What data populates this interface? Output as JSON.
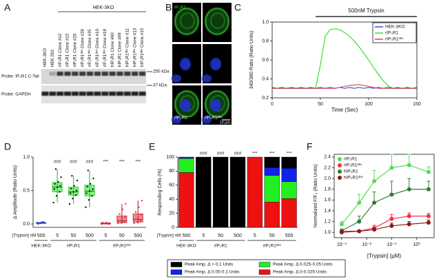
{
  "panel_labels": [
    "A",
    "B",
    "C",
    "D",
    "E",
    "F"
  ],
  "blot": {
    "group_label": "HEK-3KO",
    "lanes": [
      "HEK-3KO",
      "HEK 293",
      "rIP₃R1 Clone #12",
      "rIP₃R1 Clone #13",
      "rIP₃R1 Clone #20",
      "rIP₃R1ᵈᵉᵛ Clone #28",
      "rIP₃R1ᵈᵉᵛ Clone #35",
      "rIP₃R1ᵈᵉᵛ Clone #10",
      "rIP₃R1ᵈᵉᵛ Clone #18",
      "hIP₃R1 Clone #60",
      "hIP₃R1 Clone #69",
      "hIP₃R1ᵈᵉᵛ Clone #11",
      "hIP₃R1ᵈᵉᵛ Clone #13",
      "hIP₃R1ᵈᵉᵛ Clone #15"
    ],
    "probes": [
      "Probe: IP₃R1 C-Tail",
      "Probe: GAPDH"
    ],
    "markers": [
      "250 kDa",
      "37 kDa"
    ]
  },
  "micrographs": {
    "channel_label": "IP₃R1",
    "column_labels": [
      "rIP₃R1",
      "rIP₃R1ᵈᵉᵛ"
    ],
    "scale_bar": "10 μm"
  },
  "chart_data": [
    {
      "type": "line",
      "title": "500nM Trypsin",
      "annotation_span": [
        45,
        150
      ],
      "xlabel": "Time (Sec)",
      "ylabel": "340/380 Ratio (Ratio Units)",
      "x": [
        0,
        5,
        10,
        15,
        20,
        25,
        30,
        35,
        40,
        45,
        50,
        55,
        60,
        65,
        70,
        75,
        80,
        85,
        90,
        95,
        100,
        105,
        110,
        115,
        120,
        125,
        130,
        135,
        140,
        145,
        150
      ],
      "xlim": [
        0,
        150
      ],
      "xticks": [
        0,
        50,
        100,
        150
      ],
      "ylim": [
        0.2,
        1.0
      ],
      "yticks": [
        0.2,
        0.4,
        0.6,
        0.8,
        {
          "value": 1.0,
          "label": "1.0"
        }
      ],
      "legend": "upper right",
      "series": [
        {
          "name": "HEK-3KO",
          "color": "#2040e0",
          "values": [
            0.31,
            0.3,
            0.31,
            0.3,
            0.31,
            0.3,
            0.31,
            0.3,
            0.31,
            0.3,
            0.31,
            0.3,
            0.31,
            0.3,
            0.31,
            0.3,
            0.31,
            0.3,
            0.31,
            0.3,
            0.31,
            0.3,
            0.31,
            0.3,
            0.31,
            0.3,
            0.31,
            0.3,
            0.31,
            0.3,
            0.31
          ]
        },
        {
          "name": "rIP₃R1",
          "color": "#22dd22",
          "values": [
            0.3,
            0.3,
            0.3,
            0.3,
            0.3,
            0.3,
            0.3,
            0.3,
            0.3,
            0.3,
            0.55,
            0.85,
            0.92,
            0.93,
            0.92,
            0.89,
            0.85,
            0.8,
            0.74,
            0.67,
            0.6,
            0.52,
            0.45,
            0.38,
            0.33,
            0.3,
            0.3,
            0.3,
            0.3,
            0.3,
            0.3
          ]
        },
        {
          "name": "rIP₃R1ᵈᵉᵛ",
          "color": "#e03040",
          "values": [
            0.3,
            0.3,
            0.3,
            0.3,
            0.3,
            0.3,
            0.3,
            0.3,
            0.3,
            0.3,
            0.3,
            0.3,
            0.3,
            0.3,
            0.31,
            0.32,
            0.33,
            0.335,
            0.34,
            0.33,
            0.32,
            0.31,
            0.3,
            0.3,
            0.3,
            0.3,
            0.3,
            0.3,
            0.3,
            0.3,
            0.3
          ]
        }
      ]
    },
    {
      "type": "box",
      "ylabel": "Δ Amplitude (Ratio Units)",
      "dose_label": "[Trypsin] nM",
      "ylim": [
        -0.05,
        1.0
      ],
      "yticks": [
        {
          "value": 0,
          "label": "0.0"
        },
        0.5,
        {
          "value": 1,
          "label": "1.0"
        }
      ],
      "groups": [
        {
          "name": "HEK-3KO",
          "color": "#2040e0",
          "doses": [
            "500"
          ],
          "boxes": [
            {
              "q1": 0.01,
              "median": 0.015,
              "q3": 0.02,
              "low": 0,
              "high": 0.03,
              "points": [
                0.02,
                0.01,
                0.03,
                0.0,
                0.02,
                0.015,
                0.01,
                0.025
              ]
            }
          ]
        },
        {
          "name": "rIP₃R1",
          "color": "#22dd22",
          "doses": [
            "5",
            "50",
            "500"
          ],
          "annotation": "###",
          "boxes": [
            {
              "q1": 0.48,
              "median": 0.55,
              "q3": 0.62,
              "low": 0.32,
              "high": 0.82,
              "points": [
                0.32,
                0.42,
                0.48,
                0.52,
                0.55,
                0.57,
                0.6,
                0.63,
                0.7,
                0.82
              ]
            },
            {
              "q1": 0.43,
              "median": 0.48,
              "q3": 0.55,
              "low": 0.3,
              "high": 0.72,
              "points": [
                0.3,
                0.38,
                0.43,
                0.46,
                0.48,
                0.5,
                0.53,
                0.57,
                0.65,
                0.72
              ]
            },
            {
              "q1": 0.42,
              "median": 0.49,
              "q3": 0.58,
              "low": 0.25,
              "high": 0.8,
              "points": [
                0.25,
                0.36,
                0.42,
                0.46,
                0.49,
                0.52,
                0.56,
                0.6,
                0.68,
                0.8
              ]
            }
          ]
        },
        {
          "name": "rIP₃R1ᵈᵉᵛ",
          "color": "#e03040",
          "doses": [
            "5",
            "50",
            "500"
          ],
          "annotation": "***",
          "boxes": [
            {
              "q1": 0,
              "median": 0.01,
              "q3": 0.015,
              "low": 0,
              "high": 0.02,
              "points": [
                0.0,
                0.01,
                0.0,
                0.02,
                0.01,
                0.0,
                0.01,
                0.02
              ]
            },
            {
              "q1": 0.02,
              "median": 0.05,
              "q3": 0.12,
              "low": 0,
              "high": 0.3,
              "points": [
                0.01,
                0.02,
                0.03,
                0.05,
                0.08,
                0.1,
                0.15,
                0.22,
                0.3
              ]
            },
            {
              "q1": 0.03,
              "median": 0.07,
              "q3": 0.15,
              "low": 0,
              "high": 0.35,
              "points": [
                0.01,
                0.03,
                0.05,
                0.07,
                0.1,
                0.14,
                0.18,
                0.25,
                0.35
              ]
            }
          ]
        }
      ]
    },
    {
      "type": "stacked_bar",
      "ylabel": "Responding Cells (%)",
      "dose_label": "[Trypsin] nM",
      "ylim": [
        0,
        100
      ],
      "yticks": [
        0,
        20,
        40,
        60,
        80,
        100
      ],
      "groups": [
        {
          "name": "HEK-3KO",
          "doses": [
            "500"
          ]
        },
        {
          "name": "rIP₃R1",
          "doses": [
            "5",
            "50",
            "500"
          ],
          "annotation": "###"
        },
        {
          "name": "rIP₃R1ᵈᵉᵛ",
          "doses": [
            "5",
            "50",
            "500"
          ],
          "annotation": "***"
        }
      ],
      "series": [
        {
          "name": "Peak Amp. Δ 0-0.025 Units",
          "color": "#ee1111",
          "values": [
            78,
            0,
            0,
            0,
            100,
            36,
            41
          ]
        },
        {
          "name": "Peak Amp. Δ 0.025-0.05 Units",
          "color": "#22ee22",
          "values": [
            20,
            0,
            0,
            0,
            0,
            38,
            24
          ]
        },
        {
          "name": "Peak Amp. Δ 0.05-0.1 Units",
          "color": "#1122ee",
          "values": [
            2,
            0,
            0,
            0,
            0,
            11,
            19
          ]
        },
        {
          "name": "Peak Amp. Δ > 0.1 Units",
          "color": "#000000",
          "values": [
            0,
            100,
            100,
            100,
            0,
            15,
            16
          ]
        }
      ]
    },
    {
      "type": "scatter",
      "xlabel": "[Trypsin] (μM)",
      "ylabel": "Normalized F/F₀ (Ratio Units)",
      "log_x": true,
      "xlim": [
        0.0005,
        5
      ],
      "xticks": [
        {
          "value": 0.001,
          "label": "10⁻³"
        },
        {
          "value": 0.01,
          "label": "10⁻²"
        },
        {
          "value": 0.1,
          "label": "10⁻¹"
        },
        {
          "value": 1,
          "label": "10⁰"
        }
      ],
      "ylim": [
        0.9,
        2.45
      ],
      "yticks": [
        {
          "value": 1,
          "label": "1.0"
        },
        1.2,
        1.4,
        1.6,
        1.8,
        {
          "value": 2,
          "label": "2.0"
        },
        2.2,
        2.4
      ],
      "legend": "upper left",
      "x": [
        0.001,
        0.005,
        0.02,
        0.1,
        0.5,
        3
      ],
      "series": [
        {
          "name": "rIP₃R1",
          "color": "#55dd55",
          "values": [
            1.15,
            1.55,
            1.95,
            2.2,
            2.25,
            2.12
          ],
          "errors": [
            0.05,
            0.15,
            0.2,
            0.25,
            0.2,
            0.1
          ]
        },
        {
          "name": "rIP₃R1ᵈᵉᵛ",
          "color": "#ee3344",
          "values": [
            1.02,
            1.02,
            1.08,
            1.25,
            1.3,
            1.3
          ],
          "errors": [
            0.02,
            0.02,
            0.05,
            0.08,
            0.06,
            0.05
          ]
        },
        {
          "name": "hIP₃R1",
          "color": "#2e7d32",
          "values": [
            1.03,
            1.2,
            1.55,
            1.7,
            1.8,
            1.8
          ],
          "errors": [
            0.03,
            0.1,
            0.2,
            0.25,
            0.2,
            0.15
          ]
        },
        {
          "name": "hIP₃R1ᵈᵉᵛ",
          "color": "#8b1a1a",
          "values": [
            1.0,
            1.02,
            1.05,
            1.12,
            1.15,
            1.18
          ],
          "errors": [
            0.02,
            0.02,
            0.03,
            0.05,
            0.05,
            0.05
          ]
        }
      ]
    }
  ]
}
